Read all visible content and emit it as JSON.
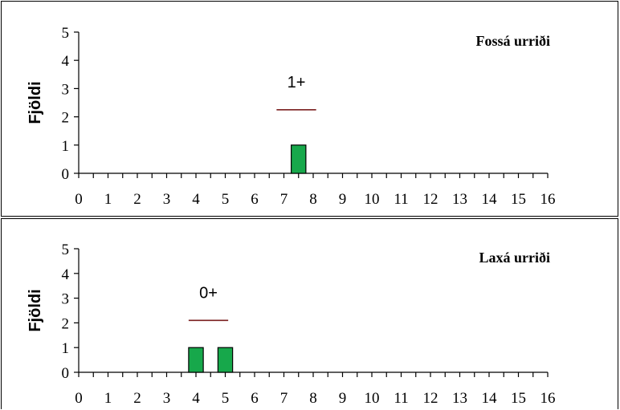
{
  "chart_data": [
    {
      "type": "bar",
      "title": "Fossá urriði",
      "ylabel": "Fjöldi",
      "xlabel": "",
      "x_ticks": [
        0,
        1,
        2,
        3,
        4,
        5,
        6,
        7,
        8,
        9,
        10,
        11,
        12,
        13,
        14,
        15,
        16
      ],
      "y_ticks": [
        0,
        1,
        2,
        3,
        4,
        5
      ],
      "ylim": [
        0,
        5
      ],
      "xlim": [
        0,
        16
      ],
      "bars": [
        {
          "x_start": 7.25,
          "x_end": 7.75,
          "value": 1
        }
      ],
      "bar_color": "#17a84b",
      "annotations": [
        {
          "text": "1+",
          "x_start": 6.75,
          "x_end": 8.1,
          "y": 2.25
        }
      ],
      "line_color": "#7a1f1f",
      "legend": "none",
      "grid": false
    },
    {
      "type": "bar",
      "title": "Laxá urriði",
      "ylabel": "Fjöldi",
      "xlabel": "",
      "x_ticks": [
        0,
        1,
        2,
        3,
        4,
        5,
        6,
        7,
        8,
        9,
        10,
        11,
        12,
        13,
        14,
        15,
        16
      ],
      "y_ticks": [
        0,
        1,
        2,
        3,
        4,
        5
      ],
      "ylim": [
        0,
        5
      ],
      "xlim": [
        0,
        16
      ],
      "bars": [
        {
          "x_start": 3.75,
          "x_end": 4.25,
          "value": 1
        },
        {
          "x_start": 4.75,
          "x_end": 5.25,
          "value": 1
        }
      ],
      "bar_color": "#17a84b",
      "annotations": [
        {
          "text": "0+",
          "x_start": 3.75,
          "x_end": 5.1,
          "y": 2.1
        }
      ],
      "line_color": "#7a1f1f",
      "legend": "none",
      "grid": false
    }
  ]
}
